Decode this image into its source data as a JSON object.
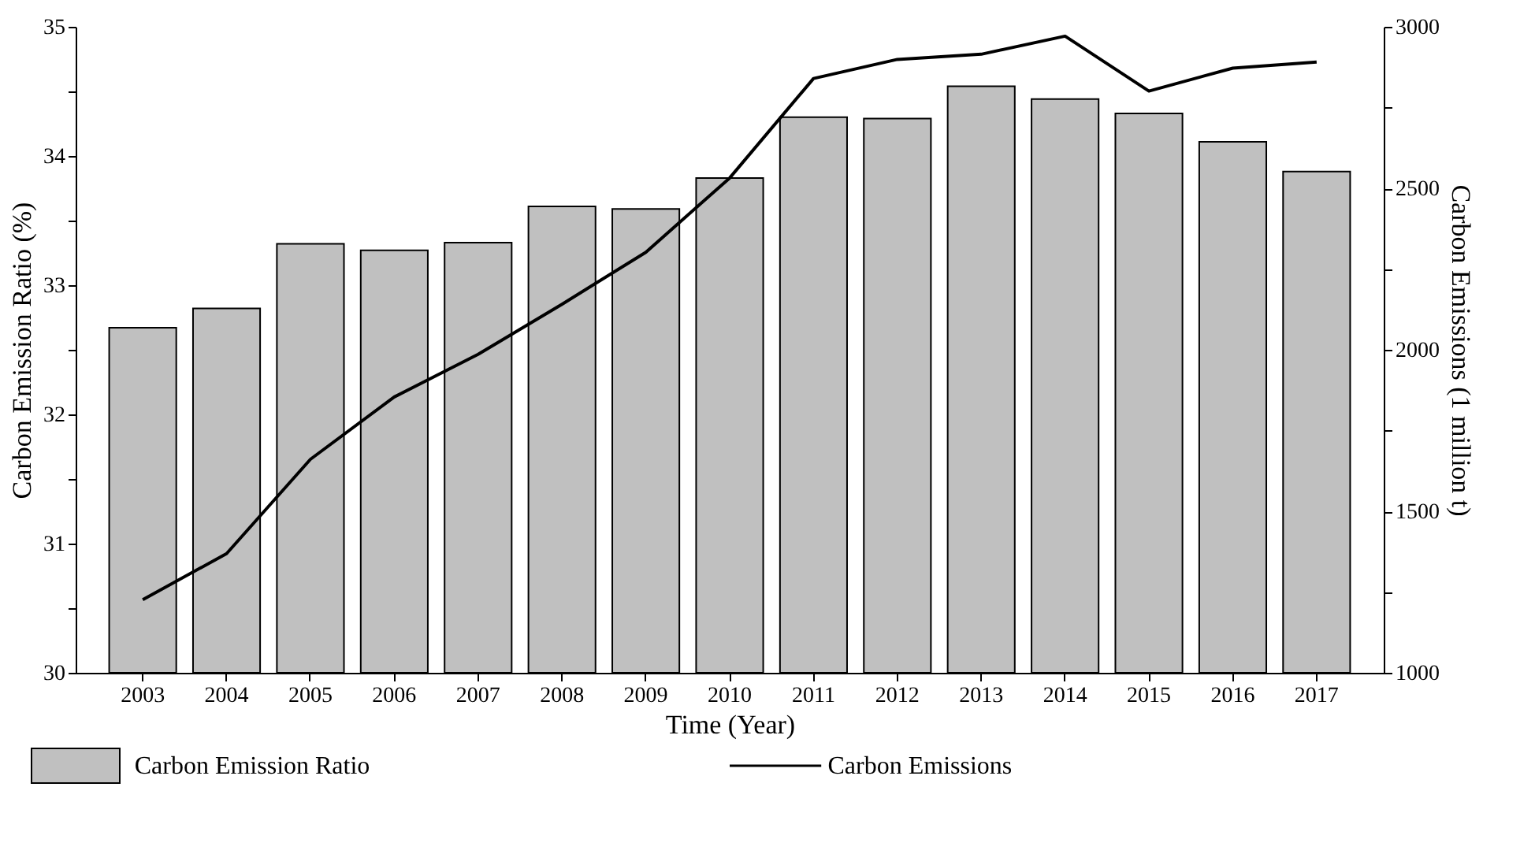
{
  "chart_data": {
    "type": "bar",
    "xlabel": "Time (Year)",
    "ylabel": "Carbon Emission Ratio (%)",
    "y2label": "Carbon Emissions (1 million t)",
    "categories": [
      "2003",
      "2004",
      "2005",
      "2006",
      "2007",
      "2008",
      "2009",
      "2010",
      "2011",
      "2012",
      "2013",
      "2014",
      "2015",
      "2016",
      "2017"
    ],
    "series": [
      {
        "name": "Carbon Emission Ratio",
        "color": "#c0c0c0",
        "values": [
          32.67,
          32.82,
          33.32,
          33.27,
          33.33,
          33.61,
          33.59,
          33.83,
          34.3,
          34.29,
          34.54,
          34.44,
          34.33,
          34.11,
          33.88
        ]
      },
      {
        "name": "Carbon Emissions",
        "type": "line",
        "axis": "y2",
        "color": "#000000",
        "values": [
          1226,
          1369,
          1661,
          1854,
          1986,
          2141,
          2302,
          2532,
          2840,
          2899,
          2915,
          2971,
          2801,
          2872,
          2891
        ]
      }
    ],
    "ylim": [
      30,
      35
    ],
    "yticks": [
      30,
      {
        "value": 30.5,
        "label": null
      },
      31,
      {
        "value": 31.5,
        "label": null
      },
      32,
      {
        "value": 32.5,
        "label": null
      },
      33,
      {
        "value": 33.5,
        "label": null
      },
      34,
      {
        "value": 34.5,
        "label": null
      },
      35
    ],
    "y2lim": [
      1000,
      3000
    ],
    "y2ticks": [
      1000,
      {
        "value": 1250,
        "label": null
      },
      1500,
      {
        "value": 1750,
        "label": null
      },
      2000,
      {
        "value": 2250,
        "label": null
      },
      2500,
      {
        "value": 2750,
        "label": null
      },
      3000
    ],
    "grid": false,
    "legend": "bottom",
    "line_style": "solid",
    "marker": "none"
  }
}
